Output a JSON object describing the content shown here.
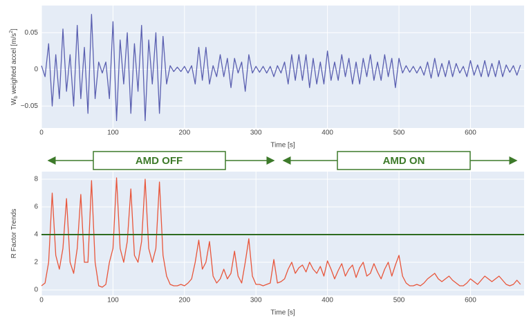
{
  "chart_data": [
    {
      "type": "line",
      "ylabel": [
        "W",
        "b",
        " weighted accel [m/s",
        "2",
        "]"
      ],
      "xlabel": "Time [s]",
      "x": [
        0,
        5,
        10,
        15,
        20,
        25,
        30,
        35,
        40,
        45,
        50,
        55,
        60,
        65,
        70,
        75,
        80,
        85,
        90,
        95,
        100,
        105,
        110,
        115,
        120,
        125,
        130,
        135,
        140,
        145,
        150,
        155,
        160,
        165,
        170,
        175,
        180,
        185,
        190,
        195,
        200,
        205,
        210,
        215,
        220,
        225,
        230,
        235,
        240,
        245,
        250,
        255,
        260,
        265,
        270,
        275,
        280,
        285,
        290,
        295,
        300,
        305,
        310,
        315,
        320,
        325,
        330,
        335,
        340,
        345,
        350,
        355,
        360,
        365,
        370,
        375,
        380,
        385,
        390,
        395,
        400,
        405,
        410,
        415,
        420,
        425,
        430,
        435,
        440,
        445,
        450,
        455,
        460,
        465,
        470,
        475,
        480,
        485,
        490,
        495,
        500,
        505,
        510,
        515,
        520,
        525,
        530,
        535,
        540,
        545,
        550,
        555,
        560,
        565,
        570,
        575,
        580,
        585,
        590,
        595,
        600,
        605,
        610,
        615,
        620,
        625,
        630,
        635,
        640,
        645,
        650,
        655,
        660,
        665,
        670
      ],
      "series": [
        {
          "color": "#5a5fb0",
          "values": [
            0.005,
            -0.01,
            0.035,
            -0.05,
            0.02,
            -0.04,
            0.055,
            -0.03,
            0.02,
            -0.05,
            0.06,
            -0.04,
            0.03,
            -0.06,
            0.075,
            -0.04,
            0.01,
            -0.005,
            0.01,
            -0.04,
            0.065,
            -0.07,
            0.04,
            -0.02,
            0.05,
            -0.06,
            0.035,
            -0.03,
            0.06,
            -0.07,
            0.04,
            -0.02,
            0.05,
            -0.06,
            0.045,
            -0.02,
            0.005,
            -0.003,
            0.003,
            -0.003,
            0.004,
            -0.005,
            0.005,
            -0.02,
            0.03,
            -0.015,
            0.03,
            -0.02,
            0.005,
            -0.01,
            0.02,
            -0.01,
            0.015,
            -0.025,
            0.015,
            -0.005,
            0.01,
            -0.03,
            0.02,
            -0.005,
            0.004,
            -0.004,
            0.004,
            -0.005,
            0.004,
            -0.01,
            0.005,
            -0.005,
            0.01,
            -0.02,
            0.02,
            -0.015,
            0.02,
            -0.015,
            0.02,
            -0.025,
            0.015,
            -0.02,
            0.01,
            -0.02,
            0.025,
            -0.015,
            0.01,
            -0.015,
            0.02,
            -0.01,
            0.015,
            -0.02,
            0.01,
            -0.02,
            0.015,
            -0.01,
            0.02,
            -0.015,
            0.01,
            -0.015,
            0.02,
            -0.01,
            0.015,
            -0.025,
            0.015,
            -0.005,
            0.005,
            -0.004,
            0.004,
            -0.005,
            0.004,
            -0.008,
            0.01,
            -0.012,
            0.015,
            -0.01,
            0.008,
            -0.01,
            0.012,
            -0.01,
            0.008,
            -0.005,
            0.004,
            -0.01,
            0.012,
            -0.008,
            0.006,
            -0.01,
            0.012,
            -0.01,
            0.008,
            -0.01,
            0.012,
            -0.01,
            0.006,
            -0.004,
            0.005,
            -0.008,
            0.006
          ]
        }
      ],
      "xlim": [
        0,
        675
      ],
      "xticks": [
        0,
        100,
        200,
        300,
        400,
        500,
        600
      ],
      "ylim": [
        -0.08,
        0.087
      ],
      "yticks": [
        {
          "value": -0.05,
          "label": "−0.05"
        },
        0,
        0.05
      ],
      "grid": true
    },
    {
      "type": "line",
      "ylabel": [
        "R Factor Trends"
      ],
      "xlabel": "Time [s]",
      "x": [
        0,
        5,
        10,
        15,
        20,
        25,
        30,
        35,
        40,
        45,
        50,
        55,
        60,
        65,
        70,
        75,
        80,
        85,
        90,
        95,
        100,
        105,
        110,
        115,
        120,
        125,
        130,
        135,
        140,
        145,
        150,
        155,
        160,
        165,
        170,
        175,
        180,
        185,
        190,
        195,
        200,
        205,
        210,
        215,
        220,
        225,
        230,
        235,
        240,
        245,
        250,
        255,
        260,
        265,
        270,
        275,
        280,
        285,
        290,
        295,
        300,
        305,
        310,
        315,
        320,
        325,
        330,
        335,
        340,
        345,
        350,
        355,
        360,
        365,
        370,
        375,
        380,
        385,
        390,
        395,
        400,
        405,
        410,
        415,
        420,
        425,
        430,
        435,
        440,
        445,
        450,
        455,
        460,
        465,
        470,
        475,
        480,
        485,
        490,
        495,
        500,
        505,
        510,
        515,
        520,
        525,
        530,
        535,
        540,
        545,
        550,
        555,
        560,
        565,
        570,
        575,
        580,
        585,
        590,
        595,
        600,
        605,
        610,
        615,
        620,
        625,
        630,
        635,
        640,
        645,
        650,
        655,
        660,
        665,
        670
      ],
      "series": [
        {
          "color": "#e8553a",
          "values": [
            0.3,
            0.5,
            2,
            7,
            2.5,
            1.5,
            3,
            6.6,
            2,
            1.2,
            3,
            6.9,
            2,
            2,
            7.9,
            2,
            0.3,
            0.2,
            0.4,
            2,
            3,
            8.1,
            3,
            2,
            3.5,
            7.3,
            2.5,
            2,
            3.5,
            8,
            3,
            2,
            3,
            7.8,
            2.5,
            1,
            0.4,
            0.3,
            0.3,
            0.4,
            0.3,
            0.5,
            0.8,
            2,
            3.6,
            1.5,
            2,
            3.5,
            1,
            0.5,
            0.8,
            1.5,
            0.8,
            1.2,
            2.8,
            1,
            0.5,
            2,
            3.7,
            1,
            0.4,
            0.4,
            0.3,
            0.4,
            0.5,
            2.2,
            0.5,
            0.6,
            0.8,
            1.5,
            2,
            1.2,
            1.6,
            1.8,
            1.3,
            2,
            1.5,
            1.2,
            1.7,
            1,
            2.1,
            1.5,
            0.8,
            1.4,
            1.9,
            1,
            1.5,
            1.8,
            0.9,
            1.6,
            2,
            1,
            1.2,
            1.9,
            1.3,
            0.8,
            1.5,
            2,
            1,
            1.8,
            2.5,
            1,
            0.5,
            0.3,
            0.3,
            0.4,
            0.3,
            0.5,
            0.8,
            1,
            1.2,
            0.8,
            0.6,
            0.8,
            1,
            0.7,
            0.5,
            0.3,
            0.3,
            0.5,
            0.8,
            0.6,
            0.4,
            0.7,
            1,
            0.8,
            0.6,
            0.8,
            1,
            0.7,
            0.4,
            0.3,
            0.4,
            0.7,
            0.4
          ]
        }
      ],
      "hline": {
        "value": 4,
        "color": "#2e6b1f"
      },
      "xlim": [
        0,
        675
      ],
      "xticks": [
        0,
        100,
        200,
        300,
        400,
        500,
        600
      ],
      "ylim": [
        -0.4,
        8.55
      ],
      "yticks": [
        0,
        2,
        4,
        6,
        8
      ],
      "grid": true
    }
  ],
  "annotations": [
    "AMD OFF",
    "AMD ON"
  ]
}
